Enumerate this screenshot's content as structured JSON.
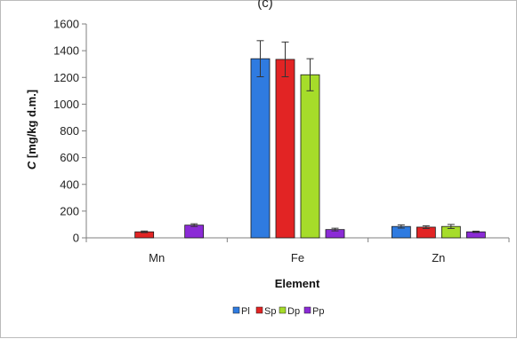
{
  "chart_data": {
    "type": "bar",
    "panel_label": "(c)",
    "categories": [
      "Mn",
      "Fe",
      "Zn"
    ],
    "series": [
      {
        "name": "Pl",
        "color": "#2F7BE0",
        "values": [
          null,
          1340,
          85
        ],
        "errors": [
          null,
          135,
          12
        ]
      },
      {
        "name": "Sp",
        "color": "#E22424",
        "values": [
          45,
          1335,
          80
        ],
        "errors": [
          6,
          130,
          10
        ]
      },
      {
        "name": "Dp",
        "color": "#A6DC2A",
        "values": [
          null,
          1220,
          85
        ],
        "errors": [
          null,
          120,
          15
        ]
      },
      {
        "name": "Pp",
        "color": "#8B2BD6",
        "values": [
          95,
          62,
          45
        ],
        "errors": [
          10,
          10,
          5
        ]
      }
    ],
    "xlabel": "Element",
    "ylabel": "C [mg/kg d.m.]",
    "ylim": [
      0,
      1600
    ],
    "yticks": [
      0,
      200,
      400,
      600,
      800,
      1000,
      1200,
      1400,
      1600
    ],
    "grid": false,
    "legend_position": "bottom-center"
  }
}
